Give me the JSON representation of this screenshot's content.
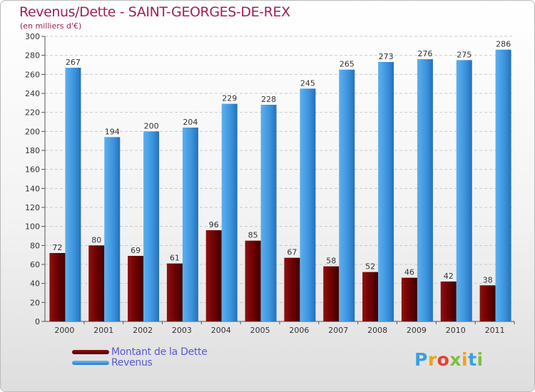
{
  "title": "Revenus/Dette - SAINT-GEORGES-DE-REX",
  "subtitle": "(en milliers d'€)",
  "logo": {
    "letters": [
      "P",
      "r",
      "o",
      "x",
      "i",
      "t",
      "i"
    ],
    "colors": [
      "#3aa0e0",
      "#f0a020",
      "#e84030",
      "#7cc040",
      "#f0a020",
      "#3aa0e0",
      "#7cc040"
    ]
  },
  "colors": {
    "dette": "#7a0a0a",
    "revenus": "#3a92dc"
  },
  "legend": [
    {
      "label": "Montant de la Dette",
      "color": "#6a0000"
    },
    {
      "label": "Revenus",
      "color": "#3a92dc"
    }
  ],
  "chart_data": {
    "type": "bar",
    "categories": [
      "2000",
      "2001",
      "2002",
      "2003",
      "2004",
      "2005",
      "2006",
      "2007",
      "2008",
      "2009",
      "2010",
      "2011"
    ],
    "series": [
      {
        "name": "Montant de la Dette",
        "values": [
          72,
          80,
          69,
          61,
          96,
          85,
          67,
          58,
          52,
          46,
          42,
          38
        ]
      },
      {
        "name": "Revenus",
        "values": [
          267,
          194,
          200,
          204,
          229,
          228,
          245,
          265,
          273,
          276,
          275,
          286
        ]
      }
    ],
    "ylim": [
      0,
      300
    ],
    "yticks": [
      0,
      20,
      40,
      60,
      80,
      100,
      120,
      140,
      160,
      180,
      200,
      220,
      240,
      260,
      280,
      300
    ],
    "grid": true,
    "legend_placement": "bottom-left"
  }
}
